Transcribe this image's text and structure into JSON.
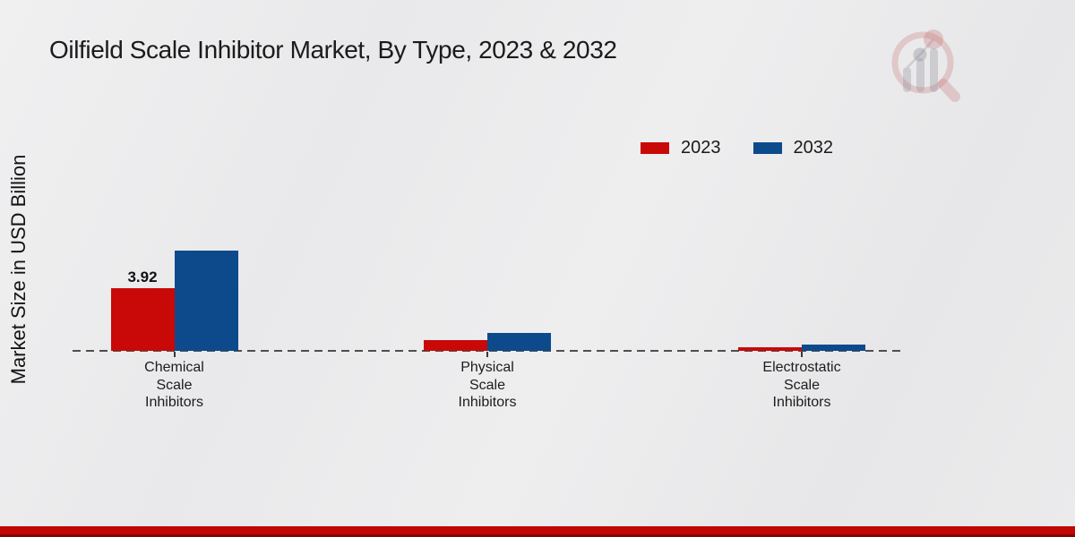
{
  "page": {
    "title": "Oilfield Scale Inhibitor Market, By Type, 2023 & 2032",
    "ylabel": "Market Size in USD Billion"
  },
  "colors": {
    "series_2023": "#c90808",
    "series_2032": "#0c4a8c",
    "footer_bar": "#c10606",
    "footer_bar_dark": "#850303",
    "baseline_dash": "#4f4f4f",
    "text": "#1b1b1b",
    "background": "#ebebec"
  },
  "watermark": {
    "name": "market-research-magnifier-logo"
  },
  "chart_data": {
    "type": "bar",
    "title": "Oilfield Scale Inhibitor Market, By Type, 2023 & 2032",
    "xlabel": "",
    "ylabel": "Market Size in USD Billion",
    "categories": [
      "Chemical Scale Inhibitors",
      "Physical Scale Inhibitors",
      "Electrostatic Scale Inhibitors"
    ],
    "categories_lines": [
      [
        "Chemical",
        "Scale",
        "Inhibitors"
      ],
      [
        "Physical",
        "Scale",
        "Inhibitors"
      ],
      [
        "Electrostatic",
        "Scale",
        "Inhibitors"
      ]
    ],
    "series": [
      {
        "name": "2023",
        "color": "#c90808",
        "values": [
          3.92,
          0.65,
          0.22
        ]
      },
      {
        "name": "2032",
        "color": "#0c4a8c",
        "values": [
          6.3,
          1.1,
          0.4
        ]
      }
    ],
    "data_labels": [
      {
        "series_index": 0,
        "category_index": 0,
        "text": "3.92"
      }
    ],
    "ylim": [
      0,
      7
    ],
    "grid": false,
    "baseline_style": "dashed",
    "legend_position": "top-right",
    "legend_entries": [
      "2023",
      "2032"
    ]
  }
}
